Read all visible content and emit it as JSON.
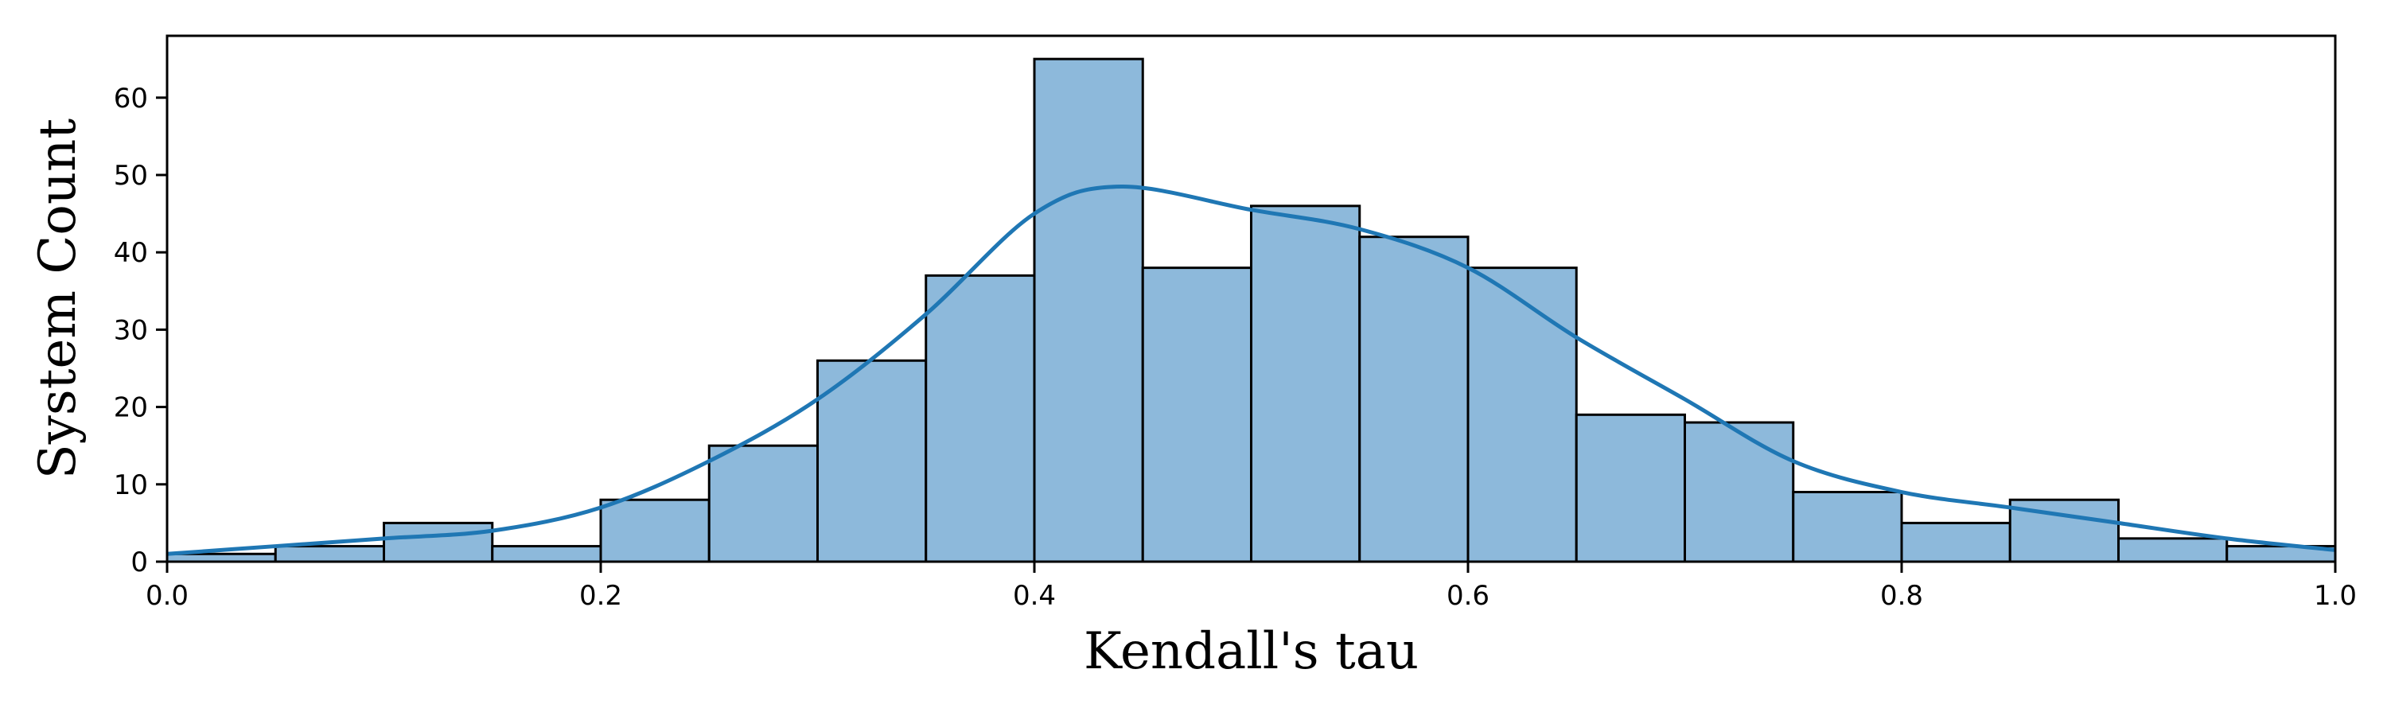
{
  "chart_data": {
    "type": "bar",
    "subtype": "histogram_with_kde",
    "title": "",
    "xlabel": "Kendall's tau",
    "ylabel": "System Count",
    "xlim": [
      0.0,
      1.0
    ],
    "ylim": [
      0,
      68
    ],
    "xticks": [
      "0.0",
      "0.2",
      "0.4",
      "0.6",
      "0.8",
      "1.0"
    ],
    "yticks": [
      "0",
      "10",
      "20",
      "30",
      "40",
      "50",
      "60"
    ],
    "bin_width": 0.05,
    "bins": [
      {
        "start": 0.0,
        "end": 0.05,
        "count": 1
      },
      {
        "start": 0.05,
        "end": 0.1,
        "count": 2
      },
      {
        "start": 0.1,
        "end": 0.15,
        "count": 5
      },
      {
        "start": 0.15,
        "end": 0.2,
        "count": 2
      },
      {
        "start": 0.2,
        "end": 0.25,
        "count": 8
      },
      {
        "start": 0.25,
        "end": 0.3,
        "count": 15
      },
      {
        "start": 0.3,
        "end": 0.35,
        "count": 26
      },
      {
        "start": 0.35,
        "end": 0.4,
        "count": 37
      },
      {
        "start": 0.4,
        "end": 0.45,
        "count": 65
      },
      {
        "start": 0.45,
        "end": 0.5,
        "count": 38
      },
      {
        "start": 0.5,
        "end": 0.55,
        "count": 46
      },
      {
        "start": 0.55,
        "end": 0.6,
        "count": 42
      },
      {
        "start": 0.6,
        "end": 0.65,
        "count": 38
      },
      {
        "start": 0.65,
        "end": 0.7,
        "count": 19
      },
      {
        "start": 0.7,
        "end": 0.75,
        "count": 18
      },
      {
        "start": 0.75,
        "end": 0.8,
        "count": 9
      },
      {
        "start": 0.8,
        "end": 0.85,
        "count": 5
      },
      {
        "start": 0.85,
        "end": 0.9,
        "count": 8
      },
      {
        "start": 0.9,
        "end": 0.95,
        "count": 3
      },
      {
        "start": 0.95,
        "end": 1.0,
        "count": 2
      }
    ],
    "kde_curve": {
      "x": [
        0.0,
        0.05,
        0.1,
        0.15,
        0.2,
        0.25,
        0.3,
        0.35,
        0.4,
        0.44,
        0.5,
        0.55,
        0.6,
        0.65,
        0.7,
        0.75,
        0.8,
        0.85,
        0.9,
        0.95,
        1.0
      ],
      "y": [
        1,
        2,
        3,
        4,
        7,
        13,
        21,
        32,
        45,
        48.5,
        45.5,
        43,
        38,
        29,
        21,
        13,
        9,
        7,
        5,
        3,
        1.5
      ]
    },
    "grid": false,
    "legend": "none",
    "colors": {
      "bar_fill": "#8db9db",
      "bar_edge": "#000000",
      "kde_line": "#1f77b4"
    }
  }
}
